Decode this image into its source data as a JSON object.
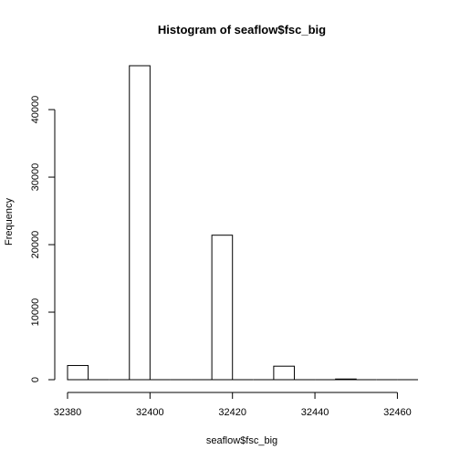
{
  "chart_data": {
    "type": "bar",
    "title": "Histogram of seaflow$fsc_big",
    "xlabel": "seaflow$fsc_big",
    "ylabel": "Frequency",
    "xlim": [
      32380,
      32465
    ],
    "ylim": [
      0,
      46500
    ],
    "x_ticks": [
      32380,
      32400,
      32420,
      32440,
      32460
    ],
    "y_ticks": [
      0,
      10000,
      20000,
      30000,
      40000
    ],
    "bins": [
      {
        "x0": 32380,
        "x1": 32385,
        "value": 2100
      },
      {
        "x0": 32385,
        "x1": 32390,
        "value": 0
      },
      {
        "x0": 32390,
        "x1": 32395,
        "value": 0
      },
      {
        "x0": 32395,
        "x1": 32400,
        "value": 46500
      },
      {
        "x0": 32400,
        "x1": 32405,
        "value": 0
      },
      {
        "x0": 32405,
        "x1": 32410,
        "value": 0
      },
      {
        "x0": 32410,
        "x1": 32415,
        "value": 0
      },
      {
        "x0": 32415,
        "x1": 32420,
        "value": 21400
      },
      {
        "x0": 32420,
        "x1": 32425,
        "value": 0
      },
      {
        "x0": 32425,
        "x1": 32430,
        "value": 0
      },
      {
        "x0": 32430,
        "x1": 32435,
        "value": 2000
      },
      {
        "x0": 32435,
        "x1": 32440,
        "value": 0
      },
      {
        "x0": 32440,
        "x1": 32445,
        "value": 0
      },
      {
        "x0": 32445,
        "x1": 32450,
        "value": 100
      },
      {
        "x0": 32450,
        "x1": 32455,
        "value": 0
      },
      {
        "x0": 32455,
        "x1": 32460,
        "value": 0
      },
      {
        "x0": 32460,
        "x1": 32465,
        "value": 0
      }
    ]
  }
}
